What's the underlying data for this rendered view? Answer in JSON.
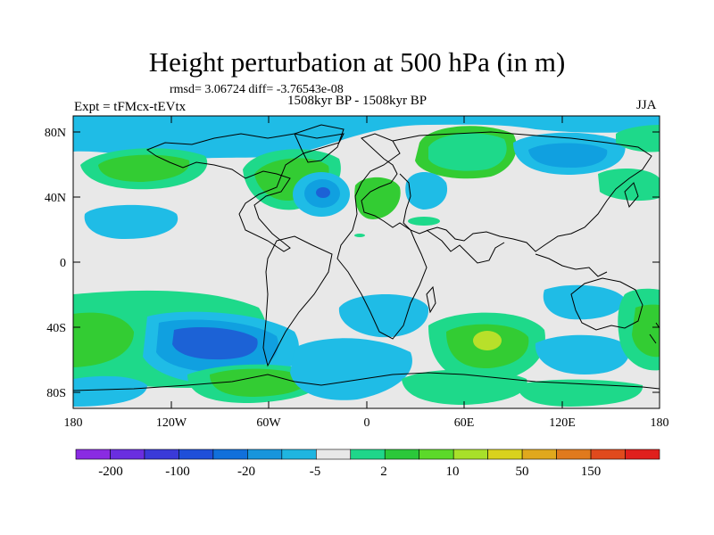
{
  "title": "Height perturbation at 500 hPa (in m)",
  "stats_line": "rmsd= 3.06724 diff= -3.76543e-08",
  "period_line": "1508kyr BP - 1508kyr BP",
  "expt_label": "Expt = tFMcx-tEVtx",
  "season_label": "JJA",
  "lat_ticks": [
    "80N",
    "40N",
    "0",
    "40S",
    "80S"
  ],
  "lon_ticks": [
    "180",
    "120W",
    "60W",
    "0",
    "60E",
    "120E",
    "180"
  ],
  "colorbar": {
    "labels": [
      "-200",
      "-100",
      "-20",
      "-5",
      "2",
      "10",
      "50",
      "150"
    ],
    "colors": [
      "#8a2be2",
      "#6a2ee0",
      "#3a3ad8",
      "#1f4fd9",
      "#1170db",
      "#1895dc",
      "#1fb5e0",
      "#e8e8e8",
      "#1fd68a",
      "#2bc83a",
      "#5cd92a",
      "#a8e02a",
      "#d9d21d",
      "#e0a81d",
      "#e07a1d",
      "#e04a1d",
      "#e0201d"
    ]
  },
  "colors": {
    "ocean": "#e8e8e8",
    "light_blue": "#1fbce6",
    "mid_blue": "#10a0e0",
    "deep_blue": "#1c62d6",
    "green_light": "#1ed98a",
    "green": "#33cc33",
    "yellow_green": "#b8e02a"
  }
}
